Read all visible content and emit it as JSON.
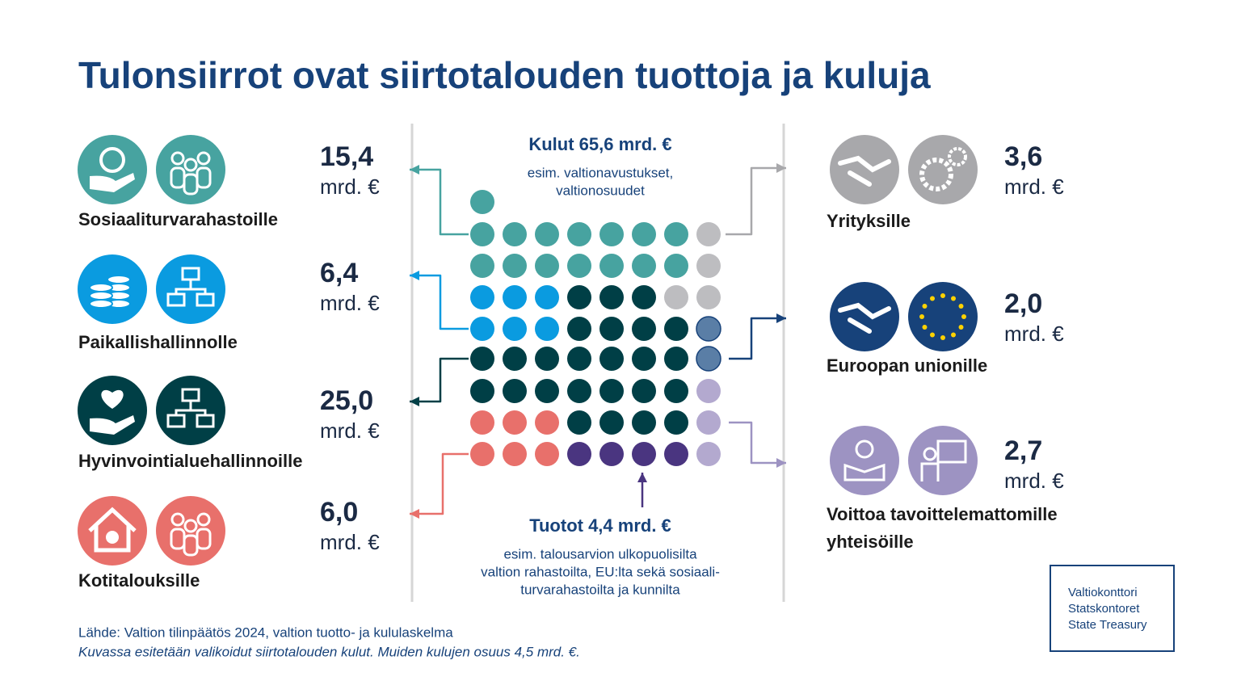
{
  "header": {
    "title": "Tulonsiirrot ovat siirtotalouden tuottoja ja kuluja"
  },
  "expenses": {
    "title": "Kulut 65,6 mrd. €",
    "lines": [
      "esim. valtionavustukset,",
      "valtionosuudet"
    ]
  },
  "income": {
    "title": "Tuotot 4,4 mrd. €",
    "lines": [
      "esim. talousarvion ulkopuolisilta",
      "valtion rahastoilta, EU:lta sekä sosiaali-",
      "turvarahastoilta ja kunnilta"
    ]
  },
  "left_items": [
    {
      "label": "Sosiaaliturvarahastoille",
      "amount": "15,4",
      "unit": "mrd. €"
    },
    {
      "label": "Paikallishallinnolle",
      "amount": "6,4",
      "unit": "mrd. €"
    },
    {
      "label": "Hyvinvointialuehallinnoille",
      "amount": "25,0",
      "unit": "mrd. €"
    },
    {
      "label": "Kotitalouksille",
      "amount": "6,0",
      "unit": "mrd. €"
    }
  ],
  "right_items": [
    {
      "label": [
        "Yrityksille"
      ],
      "amount": "3,6",
      "unit": "mrd. €"
    },
    {
      "label": [
        "Euroopan unionille"
      ],
      "amount": "2,0",
      "unit": "mrd. €"
    },
    {
      "label": [
        "Voittoa tavoittelemattomille",
        "yhteisöille"
      ],
      "amount": "2,7",
      "unit": "mrd. €"
    }
  ],
  "footer": {
    "source": "Lähde: Valtion tilinpäätös 2024, valtion tuotto- ja kululaskelma",
    "note": "Kuvassa esitetään valikoidut siirtotalouden kulut. Muiden kulujen osuus 4,5 mrd. €."
  },
  "logo": {
    "lines": [
      "Valtiokonttori",
      "Statskontoret",
      "State Treasury"
    ]
  }
}
